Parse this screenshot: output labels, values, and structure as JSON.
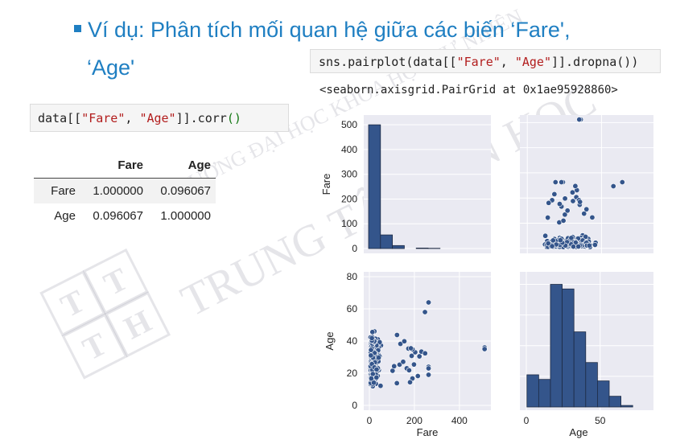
{
  "slide": {
    "title_line1": "Ví dụ: Phân tích mối quan hệ giữa các biến ‘Fare',",
    "title_line2": "‘Age'"
  },
  "cells": {
    "corr": {
      "p1": "data[[",
      "s1": "\"Fare\"",
      "p2": ", ",
      "s2": "\"Age\"",
      "p3": "]].corr",
      "p4": "()"
    },
    "pairplot": {
      "p1": "sns.pairplot(data[[",
      "s1": "\"Fare\"",
      "p2": ", ",
      "s2": "\"Age\"",
      "p3": "]].dropna())"
    },
    "pairplot_output": "<seaborn.axisgrid.PairGrid at 0x1ae95928860>"
  },
  "corr_table": {
    "columns": [
      "",
      "Fare",
      "Age"
    ],
    "rows": [
      {
        "label": "Fare",
        "values": [
          "1.000000",
          "0.096067"
        ]
      },
      {
        "label": "Age",
        "values": [
          "0.096067",
          "1.000000"
        ]
      }
    ]
  },
  "watermark": {
    "line1": "TRƯỜNG ĐẠI HỌC KHOA HỌC TỰ NHIÊN",
    "line2": "TRUNG TÂM TIN HỌC",
    "logo_letters": [
      "T",
      "T",
      "T",
      "H"
    ]
  },
  "chart_data": {
    "type": "pairplot",
    "variables": [
      "Fare",
      "Age"
    ],
    "colors": {
      "marker": "#34558b",
      "panel_bg": "#eaeaf2",
      "grid": "#ffffff"
    },
    "panels": [
      {
        "position": "Fare-Fare",
        "type": "histogram",
        "bin_edges": [
          0,
          51.2,
          102.5,
          153.7,
          204.9,
          256.2,
          307.4,
          358.6,
          409.9,
          461.1,
          512.3
        ],
        "counts": [
          500,
          55,
          12,
          0,
          2,
          1,
          0,
          0,
          0,
          0
        ],
        "ylim": [
          0,
          520
        ],
        "yticks": [
          0,
          100,
          200,
          300,
          400,
          500
        ],
        "ylabel": "Fare"
      },
      {
        "position": "Age-Age",
        "type": "histogram",
        "bin_edges": [
          0.42,
          8.38,
          16.34,
          24.29,
          32.25,
          40.21,
          48.17,
          56.13,
          64.08,
          72.04,
          80
        ],
        "counts": [
          21,
          18,
          80,
          77,
          49,
          29,
          17,
          7,
          1,
          0
        ],
        "xticks": [
          0,
          50
        ],
        "xlabel": "Age"
      },
      {
        "position": "Age-vs-Fare",
        "type": "scatter",
        "x_var": "Age",
        "y_var": "Fare",
        "xlim": [
          -5,
          85
        ],
        "ylim": [
          -20,
          530
        ],
        "note": "approximate sample of points"
      },
      {
        "position": "Fare-vs-Age",
        "type": "scatter",
        "x_var": "Fare",
        "y_var": "Age",
        "xlim": [
          -25,
          540
        ],
        "ylim": [
          -3,
          83
        ],
        "xticks": [
          0,
          200,
          400
        ],
        "yticks": [
          0,
          20,
          40,
          60,
          80
        ],
        "xlabel": "Fare",
        "ylabel": "Age",
        "note": "approximate sample of points"
      }
    ]
  }
}
